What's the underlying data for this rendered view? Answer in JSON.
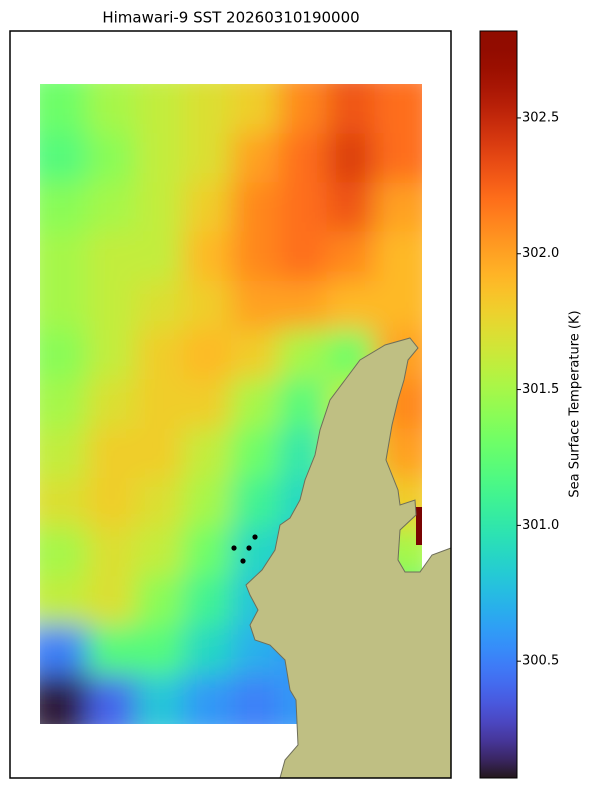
{
  "chart_data": {
    "type": "heatmap",
    "title": "Himawari-9 SST 20260310190000",
    "colorbar": {
      "label": "Sea Surface Temperature (K)",
      "lim": [
        300.07,
        302.82
      ],
      "ticks": [
        300.5,
        301.0,
        301.5,
        302.0,
        302.5
      ],
      "colormap": "turbo"
    },
    "grid_values": [
      [
        301.3,
        301.5,
        301.6,
        301.7,
        301.8,
        302.1,
        302.3,
        302.2
      ],
      [
        301.2,
        301.4,
        301.6,
        301.7,
        302.0,
        302.2,
        302.4,
        302.2
      ],
      [
        301.4,
        301.5,
        301.6,
        301.8,
        302.1,
        302.2,
        302.3,
        302.0
      ],
      [
        301.5,
        301.6,
        301.6,
        301.9,
        302.1,
        302.2,
        302.1,
        301.9
      ],
      [
        301.5,
        301.6,
        301.7,
        301.8,
        302.0,
        302.0,
        301.9,
        301.9
      ],
      [
        301.4,
        301.6,
        301.8,
        301.9,
        301.8,
        301.5,
        301.3,
        302.0
      ],
      [
        301.5,
        301.7,
        301.8,
        301.8,
        301.5,
        301.2,
        301.6,
        302.1
      ],
      [
        301.6,
        301.8,
        301.8,
        301.6,
        301.3,
        301.0,
        301.5,
        302.0
      ],
      [
        301.7,
        301.8,
        301.7,
        301.5,
        301.1,
        300.9,
        301.2,
        301.8
      ],
      [
        301.5,
        301.7,
        301.6,
        301.3,
        300.9,
        300.8,
        301.0,
        301.5
      ],
      [
        301.6,
        301.7,
        301.4,
        301.1,
        300.8,
        300.7,
        300.9,
        301.2
      ],
      [
        300.5,
        301.2,
        301.2,
        300.9,
        300.7,
        300.6,
        300.8,
        301.0
      ],
      [
        300.1,
        300.4,
        300.8,
        300.6,
        300.5,
        300.6,
        300.7,
        300.9
      ]
    ]
  }
}
